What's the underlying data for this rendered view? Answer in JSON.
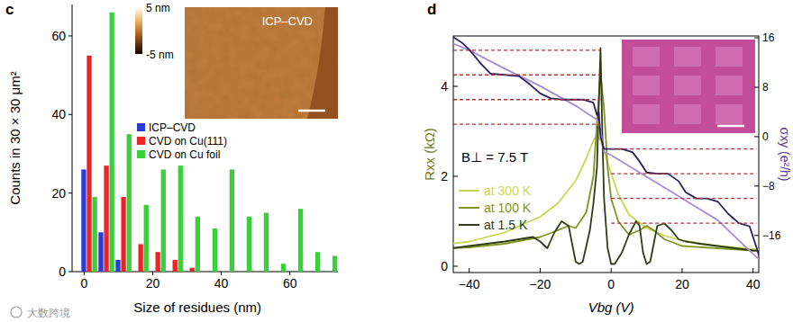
{
  "chart_data": [
    {
      "label": "c",
      "type": "bar",
      "xlabel": "Size of residues (nm)",
      "ylabel": "Counts in 30 × 30 μm²",
      "x": [
        1.5,
        6.5,
        11.5,
        16.5,
        21.5,
        26.5,
        31.5,
        36.5,
        41.5,
        46.5,
        51.5,
        56.5,
        61.5,
        66.5,
        71.5
      ],
      "xlim": [
        -3.5,
        74
      ],
      "xticks": [
        0,
        20,
        40,
        60
      ],
      "ylim": [
        0,
        68
      ],
      "yticks": [
        0,
        20,
        40,
        60
      ],
      "legend": "center",
      "series": [
        {
          "name": "ICP–CVD",
          "color": "#2b3bd6",
          "values": [
            26,
            10,
            3,
            null,
            null,
            null,
            null,
            null,
            null,
            null,
            null,
            null,
            null,
            null,
            null
          ]
        },
        {
          "name": "CVD on Cu(111)",
          "color": "#e8262a",
          "values": [
            55,
            27,
            19,
            7,
            5,
            3,
            1,
            null,
            null,
            null,
            null,
            null,
            null,
            null,
            null
          ]
        },
        {
          "name": "CVD on Cu foil",
          "color": "#3ccf3c",
          "values": [
            19,
            66,
            35,
            17,
            26,
            27,
            14,
            11,
            26,
            14,
            15,
            2,
            16,
            5,
            4
          ]
        }
      ],
      "inset": {
        "title": "ICP–CVD",
        "colorbar_range": [
          -5,
          5
        ],
        "colorbar_ticks": [
          {
            "value": 5,
            "label": "5 nm"
          },
          {
            "value": -5,
            "label": "-5 nm"
          }
        ]
      }
    },
    {
      "label": "d",
      "type": "line",
      "xlabel": "Vbg (V)",
      "ylabel": "Rxx (kΩ)",
      "y2label": "σxy (e²/h)",
      "annotation": "B⊥ = 7.5 T",
      "xlim": [
        -44.5,
        41.6
      ],
      "xticks": [
        {
          "value": -40,
          "label": "−40"
        },
        {
          "value": -20,
          "label": "−20"
        },
        0,
        20,
        40
      ],
      "ylim": [
        -0.14,
        5.12
      ],
      "yticks": [
        0,
        2,
        4
      ],
      "y2lim": [
        -22,
        16.3
      ],
      "y2ticks": [
        {
          "value": -16,
          "label": "−16"
        },
        {
          "value": -8,
          "label": "−8"
        },
        0,
        8,
        16
      ],
      "legend": "left",
      "series": [
        {
          "name": "at 300 K",
          "color": "#c9d655",
          "x": [
            -45,
            -40,
            -30,
            -20,
            -15,
            -10,
            -7,
            -5,
            -4,
            -3,
            -1,
            2,
            5,
            10,
            15,
            20,
            30,
            40,
            42
          ],
          "values": [
            0.5,
            0.55,
            0.75,
            1.1,
            1.4,
            1.9,
            2.4,
            2.8,
            2.9,
            2.8,
            2.3,
            1.6,
            1.15,
            0.85,
            0.68,
            0.57,
            0.45,
            0.38,
            0.36
          ]
        },
        {
          "name": "at 100 K",
          "color": "#7f9422",
          "x": [
            -45,
            -40,
            -30,
            -20,
            -15,
            -12,
            -10,
            -7,
            -5,
            -4,
            -3,
            -2,
            -1,
            0,
            2,
            5,
            8,
            10,
            12,
            15,
            20,
            30,
            40,
            42
          ],
          "values": [
            0.4,
            0.42,
            0.5,
            0.65,
            0.8,
            0.9,
            0.85,
            1.2,
            2.0,
            3.2,
            4.3,
            3.5,
            2.2,
            1.5,
            1.0,
            0.7,
            0.8,
            0.9,
            0.8,
            0.6,
            0.45,
            0.4,
            0.35,
            0.34
          ]
        },
        {
          "name": "at 1.5 K",
          "color": "#2e3c12",
          "x": [
            -45,
            -40,
            -35,
            -30,
            -26,
            -22,
            -20,
            -18,
            -16,
            -14,
            -12,
            -10,
            -9,
            -8,
            -6,
            -5,
            -4,
            -3,
            -2.5,
            -2,
            -1,
            0,
            1,
            3,
            5,
            7,
            8,
            9,
            10,
            11,
            13,
            15,
            17,
            19,
            21,
            25,
            30,
            35,
            40,
            42
          ],
          "values": [
            0.4,
            0.45,
            0.5,
            0.55,
            0.6,
            0.65,
            0.55,
            0.4,
            0.75,
            1.0,
            0.9,
            0.1,
            0.05,
            0.1,
            0.8,
            1.4,
            2.2,
            4.85,
            3.0,
            1.5,
            0.4,
            0.05,
            0.05,
            0.3,
            0.7,
            1.0,
            0.9,
            0.3,
            0.05,
            0.1,
            0.9,
            0.95,
            0.8,
            0.6,
            0.55,
            0.5,
            0.45,
            0.4,
            0.35,
            0.34
          ]
        },
        {
          "axis": "y2",
          "color": "#a78bd8",
          "x": [
            -45,
            -40,
            -30,
            -20,
            -10,
            -6,
            -4,
            -3,
            -2,
            0,
            10,
            20,
            30,
            40,
            42
          ],
          "values": [
            15.2,
            14,
            11,
            8.2,
            5,
            3.5,
            2.8,
            1,
            -2.5,
            -3,
            -6.5,
            -10,
            -13.5,
            -19,
            -20
          ]
        },
        {
          "axis": "y2",
          "color": "#2b1d5e",
          "x": [
            -45,
            -42,
            -40,
            -37,
            -34,
            -30,
            -26,
            -23,
            -20,
            -17,
            -14,
            -11,
            -8,
            -5,
            -4,
            -3.5,
            -3,
            -2,
            0,
            3,
            6,
            8,
            10,
            13,
            16,
            19,
            21,
            24,
            27,
            30,
            33,
            36,
            39,
            41,
            42
          ],
          "values": [
            16.3,
            15.2,
            14.1,
            12,
            10.2,
            10,
            9.8,
            8.5,
            7,
            6.2,
            6,
            6,
            6,
            5.5,
            3.5,
            4,
            0,
            -2,
            -2,
            -2,
            -2.5,
            -4,
            -5.8,
            -6,
            -6,
            -7.2,
            -9,
            -10,
            -10,
            -10.5,
            -12.5,
            -14,
            -14.5,
            -18,
            -20
          ]
        },
        {
          "axis": "y2",
          "color": "#b83232",
          "line_style": "dashed",
          "x": [
            -44.5,
            -3
          ],
          "values": [
            14,
            14
          ]
        },
        {
          "axis": "y2",
          "color": "#b83232",
          "line_style": "dashed",
          "x": [
            -44.5,
            -3
          ],
          "values": [
            10,
            10
          ]
        },
        {
          "axis": "y2",
          "color": "#b83232",
          "line_style": "dashed",
          "x": [
            -44.5,
            -3
          ],
          "values": [
            6,
            6
          ]
        },
        {
          "axis": "y2",
          "color": "#b83232",
          "line_style": "dashed",
          "x": [
            -44.5,
            -3
          ],
          "values": [
            2,
            2
          ]
        },
        {
          "axis": "y2",
          "color": "#b83232",
          "line_style": "dashed",
          "x": [
            0,
            41
          ],
          "values": [
            -2,
            -2
          ]
        },
        {
          "axis": "y2",
          "color": "#b83232",
          "line_style": "dashed",
          "x": [
            0,
            41
          ],
          "values": [
            -6,
            -6
          ]
        },
        {
          "axis": "y2",
          "color": "#b83232",
          "line_style": "dashed",
          "x": [
            0,
            41
          ],
          "values": [
            -10,
            -10
          ]
        },
        {
          "axis": "y2",
          "color": "#b83232",
          "line_style": "dashed",
          "x": [
            0,
            41
          ],
          "values": [
            -14,
            -14
          ]
        }
      ]
    }
  ],
  "watermark": "大数跨境"
}
